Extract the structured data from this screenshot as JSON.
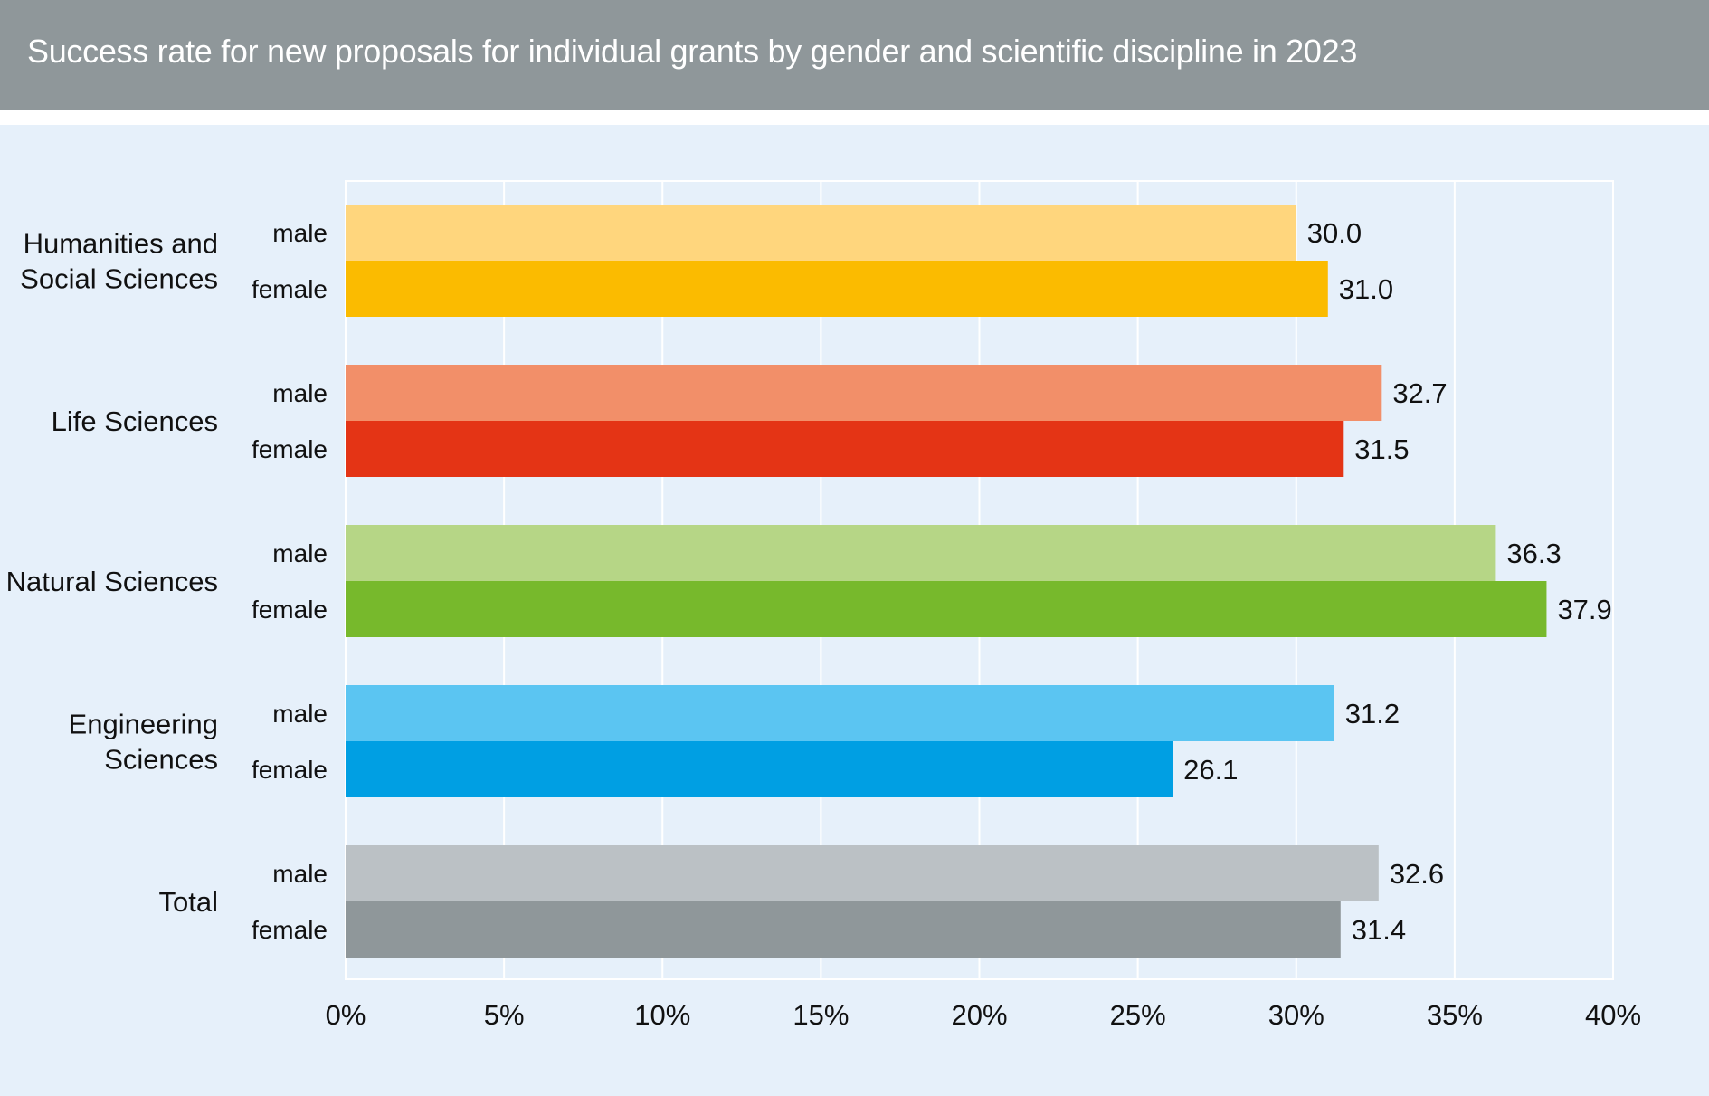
{
  "title": "Success rate for new proposals for individual grants by gender and scientific discipline in 2023",
  "chart_data": {
    "type": "bar",
    "orientation": "horizontal",
    "title": "Success rate for new proposals for individual grants by gender and scientific discipline in 2023",
    "xlim": [
      0,
      40
    ],
    "x_ticks": [
      "0%",
      "5%",
      "10%",
      "15%",
      "20%",
      "25%",
      "30%",
      "35%",
      "40%"
    ],
    "grid": true,
    "groups": [
      {
        "label_lines": [
          "Humanities and",
          "Social Sciences"
        ],
        "bars": [
          {
            "gender": "male",
            "value": 30.0,
            "label": "30.0",
            "color": "#ffd67d"
          },
          {
            "gender": "female",
            "value": 31.0,
            "label": "31.0",
            "color": "#fbbb00"
          }
        ]
      },
      {
        "label_lines": [
          "Life Sciences"
        ],
        "bars": [
          {
            "gender": "male",
            "value": 32.7,
            "label": "32.7",
            "color": "#f28f69"
          },
          {
            "gender": "female",
            "value": 31.5,
            "label": "31.5",
            "color": "#e43415"
          }
        ]
      },
      {
        "label_lines": [
          "Natural Sciences"
        ],
        "bars": [
          {
            "gender": "male",
            "value": 36.3,
            "label": "36.3",
            "color": "#b6d686"
          },
          {
            "gender": "female",
            "value": 37.9,
            "label": "37.9",
            "color": "#77b92c"
          }
        ]
      },
      {
        "label_lines": [
          "Engineering",
          "Sciences"
        ],
        "bars": [
          {
            "gender": "male",
            "value": 31.2,
            "label": "31.2",
            "color": "#5bc5f2"
          },
          {
            "gender": "female",
            "value": 26.1,
            "label": "26.1",
            "color": "#009fe3"
          }
        ]
      },
      {
        "label_lines": [
          "Total"
        ],
        "bars": [
          {
            "gender": "male",
            "value": 32.6,
            "label": "32.6",
            "color": "#bbc1c5"
          },
          {
            "gender": "female",
            "value": 31.4,
            "label": "31.4",
            "color": "#8f979a"
          }
        ]
      }
    ]
  }
}
